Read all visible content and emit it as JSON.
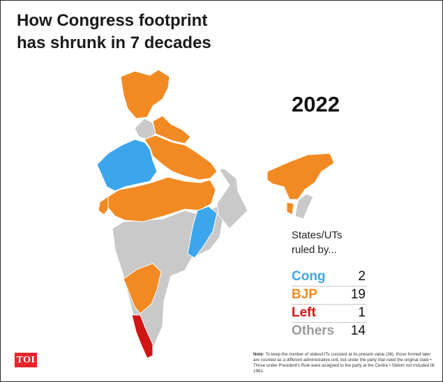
{
  "title_lines": [
    "How Congress footprint",
    "has shrunk in 7 decades"
  ],
  "year": "2022",
  "legend": {
    "heading_lines": [
      "States/UTs",
      "ruled by..."
    ],
    "items": [
      {
        "label": "Cong",
        "count": "2",
        "color": "#3ba6ec"
      },
      {
        "label": "BJP",
        "count": "19",
        "color": "#f28a23"
      },
      {
        "label": "Left",
        "count": "1",
        "color": "#d11414"
      },
      {
        "label": "Others",
        "count": "14",
        "color": "#9a9a9a"
      }
    ]
  },
  "map_colors": {
    "cong": "#3ba6ec",
    "bjp": "#f28a23",
    "left": "#d11414",
    "others": "#c9c9c9"
  },
  "logo": "TOI",
  "note": {
    "prefix": "Note:",
    "text": "To keep the number of states/UTs constant at its present value (36), those formed later are counted as a different administrative unit, but under the party that ruled the original state • Those under President's Rule were assigned to the party at the Centre • Sikkim not included till 1981."
  }
}
